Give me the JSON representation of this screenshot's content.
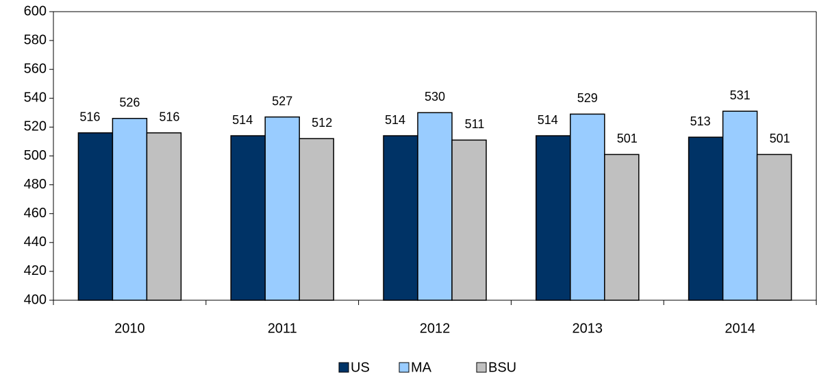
{
  "chart_data": {
    "type": "bar",
    "categories": [
      "2010",
      "2011",
      "2012",
      "2013",
      "2014"
    ],
    "series": [
      {
        "name": "US",
        "color": "#003366",
        "values": [
          516,
          514,
          514,
          514,
          513
        ]
      },
      {
        "name": "MA",
        "color": "#99ccff",
        "values": [
          526,
          527,
          530,
          529,
          531
        ]
      },
      {
        "name": "BSU",
        "color": "#c0c0c0",
        "values": [
          516,
          512,
          511,
          501,
          501
        ]
      }
    ],
    "ylim": [
      400,
      600
    ],
    "yticks": [
      400,
      420,
      440,
      460,
      480,
      500,
      520,
      540,
      560,
      580,
      600
    ],
    "grid": false,
    "legend": "bottom"
  }
}
